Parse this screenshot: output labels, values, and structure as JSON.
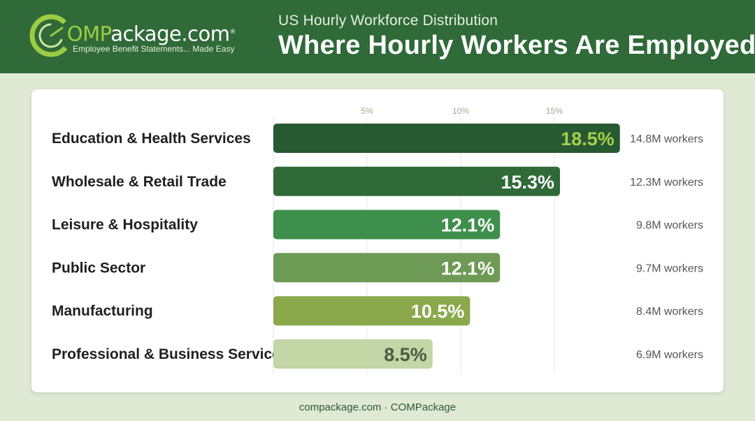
{
  "header": {
    "logo_prefix": "C",
    "logo_accent": "OMP",
    "logo_rest": "ackage.com",
    "logo_registered": "®",
    "logo_tagline": "Employee Benefit Statements... Made Easy",
    "subtitle": "US Hourly Workforce Distribution",
    "title": "Where Hourly Workers Are Employed."
  },
  "footer": {
    "text": "compackage.com · COMPackage"
  },
  "colors": {
    "header_bg": "#2f6a38",
    "page_bg": "#dfe9d4",
    "logo_accent": "#9ccc43",
    "bar_colors": [
      "#285a32",
      "#2f6a38",
      "#3f8f4c",
      "#6d9a55",
      "#8aa94b",
      "#c2d6a6"
    ],
    "first_value_color": "#a6cf4c"
  },
  "chart_data": {
    "type": "bar",
    "orientation": "horizontal",
    "categories": [
      "Education & Health Services",
      "Wholesale & Retail Trade",
      "Leisure & Hospitality",
      "Public Sector",
      "Manufacturing",
      "Professional & Business Services"
    ],
    "values": [
      18.5,
      15.3,
      12.1,
      12.1,
      10.5,
      8.5
    ],
    "value_labels": [
      "18.5%",
      "15.3%",
      "12.1%",
      "12.1%",
      "10.5%",
      "8.5%"
    ],
    "secondary_labels": [
      "14.8M workers",
      "12.3M workers",
      "9.8M workers",
      "9.7M workers",
      "8.4M workers",
      "6.9M workers"
    ],
    "x_ticks": [
      5,
      10,
      15
    ],
    "x_tick_labels": [
      "5%",
      "10%",
      "15%"
    ],
    "xlim": [
      0,
      20
    ],
    "grid": true,
    "legend": "none"
  }
}
